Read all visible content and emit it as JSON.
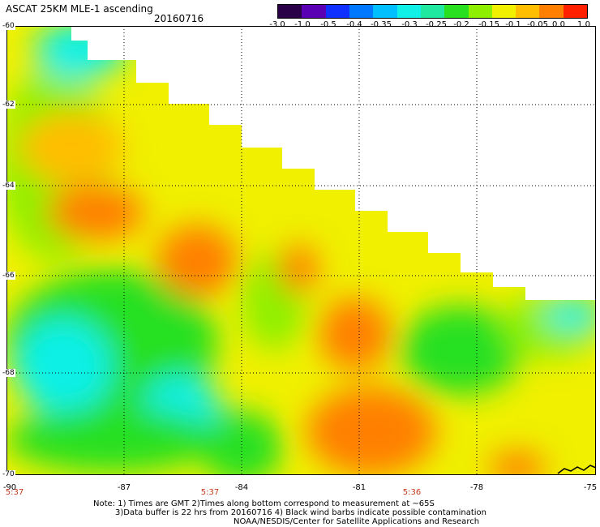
{
  "header": {
    "title": "ASCAT 25KM MLE-1 ascending",
    "date": "20160716"
  },
  "colorbar": {
    "labels": [
      "-3.0",
      "-1.0",
      "-0.5",
      "-0.4",
      "-0.35",
      "-0.3",
      "-0.25",
      "-0.2",
      "-0.15",
      "-0.1",
      "-0.05",
      "0.0",
      "1.0"
    ],
    "colors": [
      "#2a0048",
      "#5a00b4",
      "#1030ff",
      "#0078ff",
      "#00bfff",
      "#10f0e6",
      "#20e8a0",
      "#28e020",
      "#8ef000",
      "#f0f000",
      "#ffbe00",
      "#ff8000",
      "#ff2000"
    ]
  },
  "map": {
    "lat_labels": [
      "-60",
      "-62",
      "-64",
      "-66",
      "-68",
      "-70"
    ],
    "lon_labels": [
      "-90",
      "-87",
      "-84",
      "-81",
      "-78",
      "-75"
    ],
    "time_labels": [
      "5:37",
      "5:37",
      "5:36"
    ],
    "gridline_color": "#000000",
    "colors": {
      "land": "#ffffff",
      "swath_main": "#f0f000",
      "swath_alt": "#8ef000",
      "high": "#ff8000",
      "low": "#10f0e6"
    }
  },
  "notes": {
    "line1": "Note: 1) Times are GMT 2)Times along bottom correspond to measurement at ~65S",
    "line2": "3)Data buffer is 22 hrs from 20160716 4) Black wind barbs indicate possible contamination",
    "line3": "NOAA/NESDIS/Center for Satellite Applications and Research"
  }
}
